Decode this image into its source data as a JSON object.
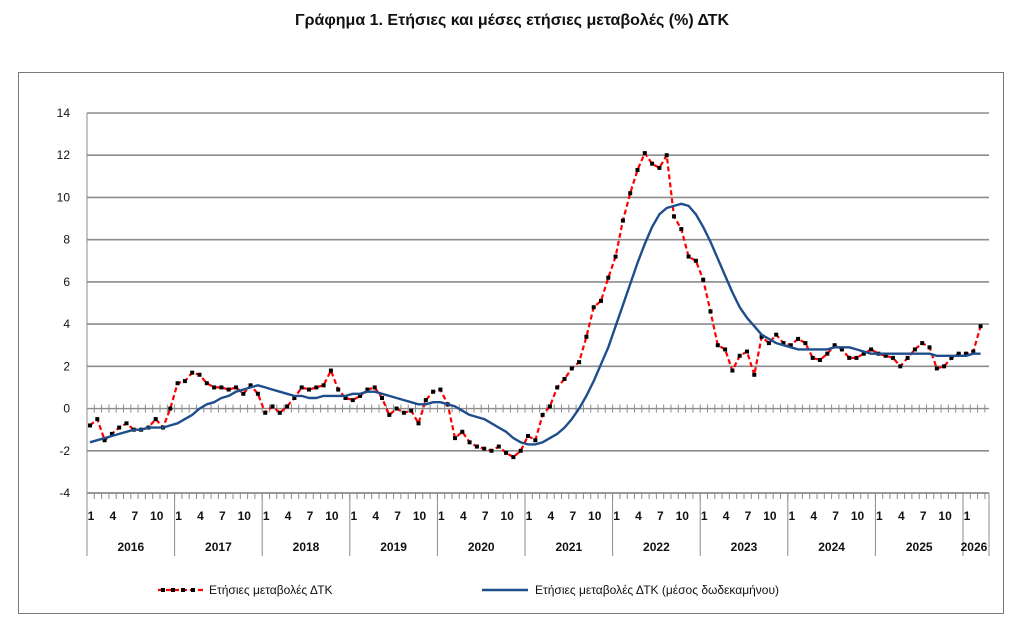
{
  "chart_data": {
    "type": "line",
    "title": "Γράφημα 1. Ετήσιες και μέσες ετήσιες μεταβολές (%) ΔΤΚ",
    "ylim": [
      -4,
      14
    ],
    "yticks": [
      -4,
      -2,
      0,
      2,
      4,
      6,
      8,
      10,
      12,
      14
    ],
    "xtick_months": [
      "1",
      "4",
      "7",
      "10"
    ],
    "years": [
      "2016",
      "2017",
      "2018",
      "2019",
      "2020",
      "2021",
      "2022",
      "2023",
      "2024",
      "2025",
      "2026"
    ],
    "start": "2016-01",
    "grid": "horizontal",
    "legend_position": "bottom",
    "series": [
      {
        "name": "Ετήσιες μεταβολές ΔΤΚ",
        "color": "#ff0000",
        "marker_color": "#000000",
        "style": "dashed",
        "values": [
          -0.8,
          -0.5,
          -1.5,
          -1.2,
          -0.9,
          -0.7,
          -1.0,
          -1.0,
          -0.9,
          -0.5,
          -0.9,
          0.0,
          1.2,
          1.3,
          1.7,
          1.6,
          1.2,
          1.0,
          1.0,
          0.9,
          1.0,
          0.7,
          1.1,
          0.7,
          -0.2,
          0.1,
          -0.2,
          0.1,
          0.5,
          1.0,
          0.9,
          1.0,
          1.1,
          1.8,
          0.9,
          0.5,
          0.4,
          0.6,
          0.9,
          1.0,
          0.5,
          -0.3,
          0.0,
          -0.2,
          -0.1,
          -0.7,
          0.4,
          0.8,
          0.9,
          0.2,
          -1.4,
          -1.1,
          -1.6,
          -1.8,
          -1.9,
          -2.0,
          -1.8,
          -2.1,
          -2.3,
          -2.0,
          -1.3,
          -1.5,
          -0.3,
          0.1,
          1.0,
          1.4,
          1.9,
          2.2,
          3.4,
          4.8,
          5.1,
          6.2,
          7.2,
          8.9,
          10.2,
          11.3,
          12.1,
          11.6,
          11.4,
          12.0,
          9.1,
          8.5,
          7.2,
          7.0,
          6.1,
          4.6,
          3.0,
          2.8,
          1.8,
          2.5,
          2.7,
          1.6,
          3.4,
          3.1,
          3.5,
          3.1,
          3.0,
          3.3,
          3.1,
          2.4,
          2.3,
          2.6,
          3.0,
          2.8,
          2.4,
          2.4,
          2.6,
          2.8,
          2.6,
          2.5,
          2.4,
          2.0,
          2.4,
          2.8,
          3.1,
          2.9,
          1.9,
          2.0,
          2.4,
          2.6,
          2.6,
          2.7,
          3.9
        ]
      },
      {
        "name": "Ετήσιες μεταβολές ΔΤΚ (μέσος δωδεκαμήνου)",
        "color": "#1f4e8c",
        "style": "solid",
        "values": [
          -1.6,
          -1.5,
          -1.4,
          -1.3,
          -1.2,
          -1.1,
          -1.0,
          -1.0,
          -0.9,
          -0.9,
          -0.9,
          -0.8,
          -0.7,
          -0.5,
          -0.3,
          0.0,
          0.2,
          0.3,
          0.5,
          0.6,
          0.8,
          0.9,
          1.0,
          1.1,
          1.0,
          0.9,
          0.8,
          0.7,
          0.6,
          0.6,
          0.5,
          0.5,
          0.6,
          0.6,
          0.6,
          0.6,
          0.7,
          0.7,
          0.8,
          0.8,
          0.7,
          0.6,
          0.5,
          0.4,
          0.3,
          0.2,
          0.2,
          0.3,
          0.3,
          0.2,
          0.1,
          -0.1,
          -0.3,
          -0.4,
          -0.5,
          -0.7,
          -0.9,
          -1.1,
          -1.4,
          -1.6,
          -1.7,
          -1.7,
          -1.6,
          -1.4,
          -1.2,
          -0.9,
          -0.5,
          0.0,
          0.6,
          1.3,
          2.1,
          2.9,
          3.9,
          4.9,
          5.9,
          6.9,
          7.8,
          8.6,
          9.2,
          9.5,
          9.6,
          9.7,
          9.6,
          9.2,
          8.6,
          7.9,
          7.1,
          6.3,
          5.5,
          4.8,
          4.3,
          3.9,
          3.5,
          3.3,
          3.1,
          3.0,
          2.9,
          2.8,
          2.8,
          2.8,
          2.8,
          2.8,
          2.9,
          2.9,
          2.9,
          2.8,
          2.7,
          2.6,
          2.6,
          2.6,
          2.6,
          2.6,
          2.6,
          2.6,
          2.6,
          2.6,
          2.5,
          2.5,
          2.5,
          2.5,
          2.5,
          2.6,
          2.6
        ]
      }
    ]
  }
}
